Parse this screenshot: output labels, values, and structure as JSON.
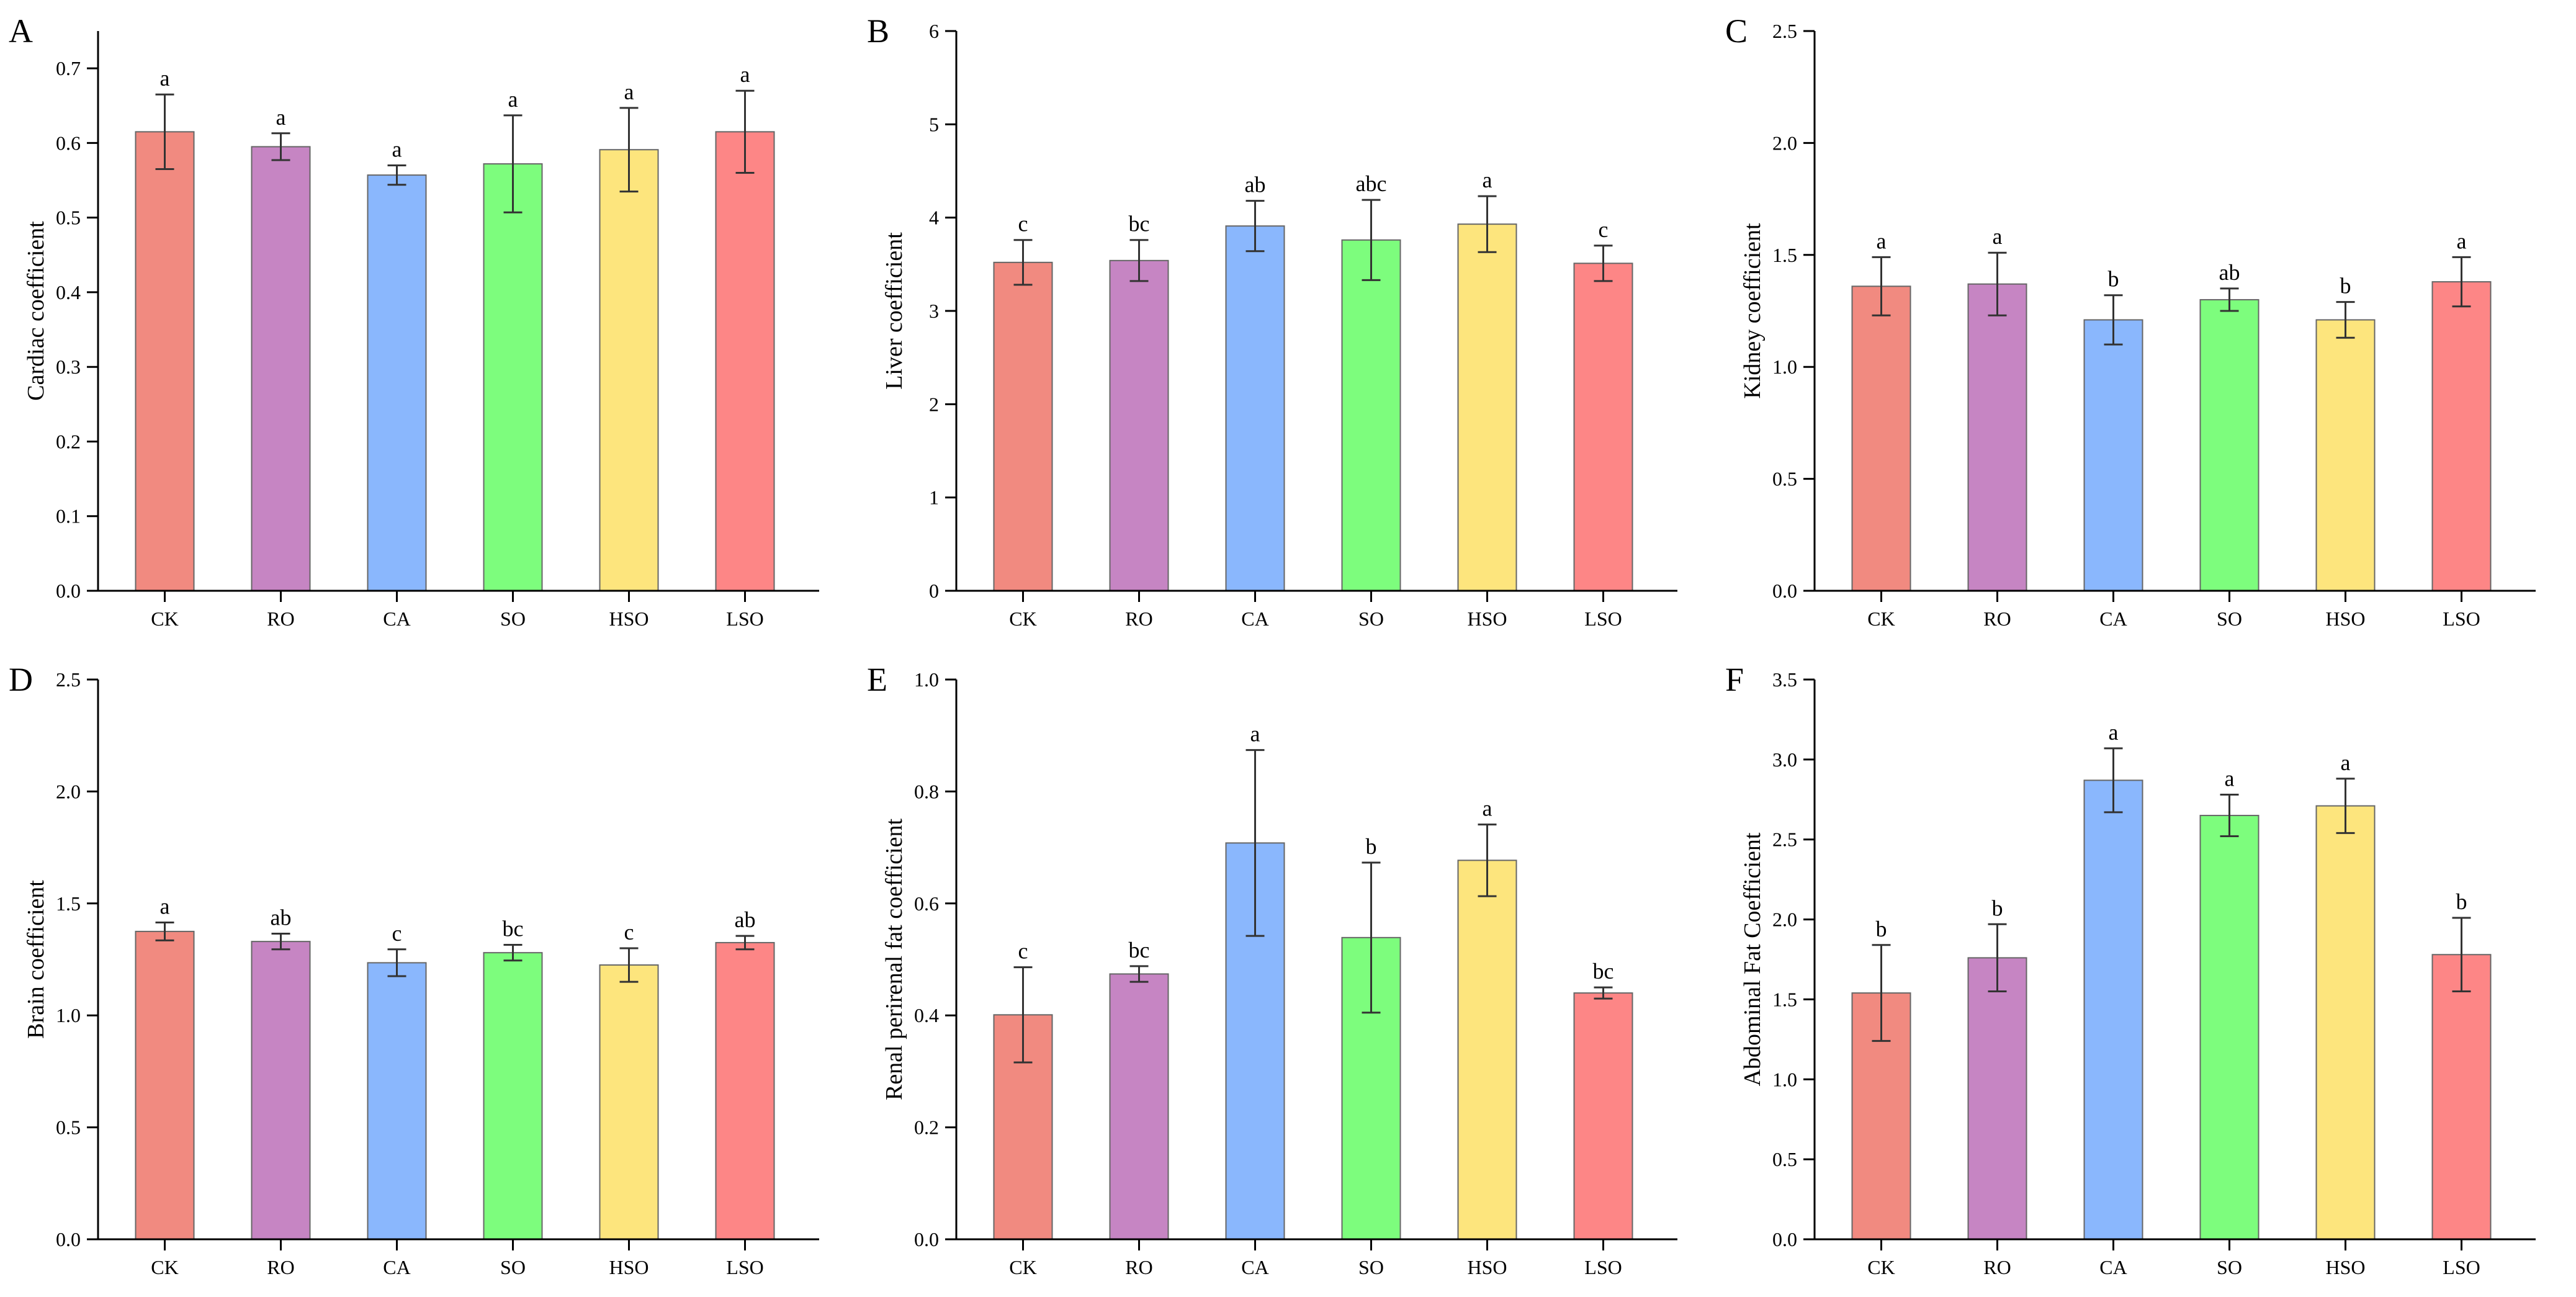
{
  "figure": {
    "panel_letters": [
      "A",
      "B",
      "C",
      "D",
      "E",
      "F"
    ]
  },
  "chart_data": [
    {
      "type": "bar",
      "panel_label": "A",
      "categories": [
        "CK",
        "RO",
        "CA",
        "SO",
        "HSO",
        "LSO"
      ],
      "values": [
        0.615,
        0.595,
        0.557,
        0.572,
        0.591,
        0.615
      ],
      "errors": [
        0.05,
        0.018,
        0.013,
        0.065,
        0.056,
        0.055
      ],
      "significance": [
        "a",
        "a",
        "a",
        "a",
        "a",
        "a"
      ],
      "bar_colors": [
        "#f18a80",
        "#c685c3",
        "#8ab7fd",
        "#7dfd7d",
        "#fde57d",
        "#fd8686"
      ],
      "title": "",
      "xlabel": "",
      "ylabel": "Cardiac coefficient",
      "ylim": [
        0,
        0.75
      ],
      "yticks": [
        0.0,
        0.1,
        0.2,
        0.3,
        0.4,
        0.5,
        0.6,
        0.7
      ],
      "ytick_labels": [
        "0.0",
        "0.1",
        "0.2",
        "0.3",
        "0.4",
        "0.5",
        "0.6",
        "0.7"
      ],
      "grid": false
    },
    {
      "type": "bar",
      "panel_label": "B",
      "categories": [
        "CK",
        "RO",
        "CA",
        "SO",
        "HSO",
        "LSO"
      ],
      "values": [
        3.52,
        3.54,
        3.91,
        3.76,
        3.93,
        3.51
      ],
      "errors": [
        0.24,
        0.22,
        0.27,
        0.43,
        0.3,
        0.19
      ],
      "significance": [
        "c",
        "bc",
        "ab",
        "abc",
        "a",
        "c"
      ],
      "bar_colors": [
        "#f18a80",
        "#c685c3",
        "#8ab7fd",
        "#7dfd7d",
        "#fde57d",
        "#fd8686"
      ],
      "title": "",
      "xlabel": "",
      "ylabel": "Liver coefficient",
      "ylim": [
        0,
        6
      ],
      "yticks": [
        0,
        1,
        2,
        3,
        4,
        5,
        6
      ],
      "ytick_labels": [
        "0",
        "1",
        "2",
        "3",
        "4",
        "5",
        "6"
      ],
      "grid": false
    },
    {
      "type": "bar",
      "panel_label": "C",
      "categories": [
        "CK",
        "RO",
        "CA",
        "SO",
        "HSO",
        "LSO"
      ],
      "values": [
        1.36,
        1.37,
        1.21,
        1.3,
        1.21,
        1.38
      ],
      "errors": [
        0.13,
        0.14,
        0.11,
        0.05,
        0.08,
        0.11
      ],
      "significance": [
        "a",
        "a",
        "b",
        "ab",
        "b",
        "a"
      ],
      "bar_colors": [
        "#f18a80",
        "#c685c3",
        "#8ab7fd",
        "#7dfd7d",
        "#fde57d",
        "#fd8686"
      ],
      "title": "",
      "xlabel": "",
      "ylabel": "Kidney coefficient",
      "ylim": [
        0,
        2.5
      ],
      "yticks": [
        0.0,
        0.5,
        1.0,
        1.5,
        2.0,
        2.5
      ],
      "ytick_labels": [
        "0.0",
        "0.5",
        "1.0",
        "1.5",
        "2.0",
        "2.5"
      ],
      "grid": false
    },
    {
      "type": "bar",
      "panel_label": "D",
      "categories": [
        "CK",
        "RO",
        "CA",
        "SO",
        "HSO",
        "LSO"
      ],
      "values": [
        1.375,
        1.33,
        1.235,
        1.28,
        1.225,
        1.325
      ],
      "errors": [
        0.04,
        0.035,
        0.06,
        0.035,
        0.075,
        0.03
      ],
      "significance": [
        "a",
        "ab",
        "c",
        "bc",
        "c",
        "ab"
      ],
      "bar_colors": [
        "#f18a80",
        "#c685c3",
        "#8ab7fd",
        "#7dfd7d",
        "#fde57d",
        "#fd8686"
      ],
      "title": "",
      "xlabel": "",
      "ylabel": "Brain coefficient",
      "ylim": [
        0,
        2.5
      ],
      "yticks": [
        0.0,
        0.5,
        1.0,
        1.5,
        2.0,
        2.5
      ],
      "ytick_labels": [
        "0.0",
        "0.5",
        "1.0",
        "1.5",
        "2.0",
        "2.5"
      ],
      "grid": false
    },
    {
      "type": "bar",
      "panel_label": "E",
      "categories": [
        "CK",
        "RO",
        "CA",
        "SO",
        "HSO",
        "LSO"
      ],
      "values": [
        0.401,
        0.474,
        0.708,
        0.539,
        0.677,
        0.44
      ],
      "errors": [
        0.085,
        0.014,
        0.166,
        0.134,
        0.064,
        0.01
      ],
      "significance": [
        "c",
        "bc",
        "a",
        "b",
        "a",
        "bc"
      ],
      "bar_colors": [
        "#f18a80",
        "#c685c3",
        "#8ab7fd",
        "#7dfd7d",
        "#fde57d",
        "#fd8686"
      ],
      "title": "",
      "xlabel": "",
      "ylabel": "Renal perirenal fat coefficient",
      "ylim": [
        0,
        1.0
      ],
      "yticks": [
        0.0,
        0.2,
        0.4,
        0.6,
        0.8,
        1.0
      ],
      "ytick_labels": [
        "0.0",
        "0.2",
        "0.4",
        "0.6",
        "0.8",
        "1.0"
      ],
      "grid": false
    },
    {
      "type": "bar",
      "panel_label": "F",
      "categories": [
        "CK",
        "RO",
        "CA",
        "SO",
        "HSO",
        "LSO"
      ],
      "values": [
        1.54,
        1.76,
        2.87,
        2.65,
        2.71,
        1.78
      ],
      "errors": [
        0.3,
        0.21,
        0.2,
        0.13,
        0.17,
        0.23
      ],
      "significance": [
        "b",
        "b",
        "a",
        "a",
        "a",
        "b"
      ],
      "bar_colors": [
        "#f18a80",
        "#c685c3",
        "#8ab7fd",
        "#7dfd7d",
        "#fde57d",
        "#fd8686"
      ],
      "title": "",
      "xlabel": "",
      "ylabel": "Abdominal Fat Coefficient",
      "ylim": [
        0,
        3.5
      ],
      "yticks": [
        0.0,
        0.5,
        1.0,
        1.5,
        2.0,
        2.5,
        3.0,
        3.5
      ],
      "ytick_labels": [
        "0.0",
        "0.5",
        "1.0",
        "1.5",
        "2.0",
        "2.5",
        "3.0",
        "3.5"
      ],
      "grid": false
    }
  ]
}
